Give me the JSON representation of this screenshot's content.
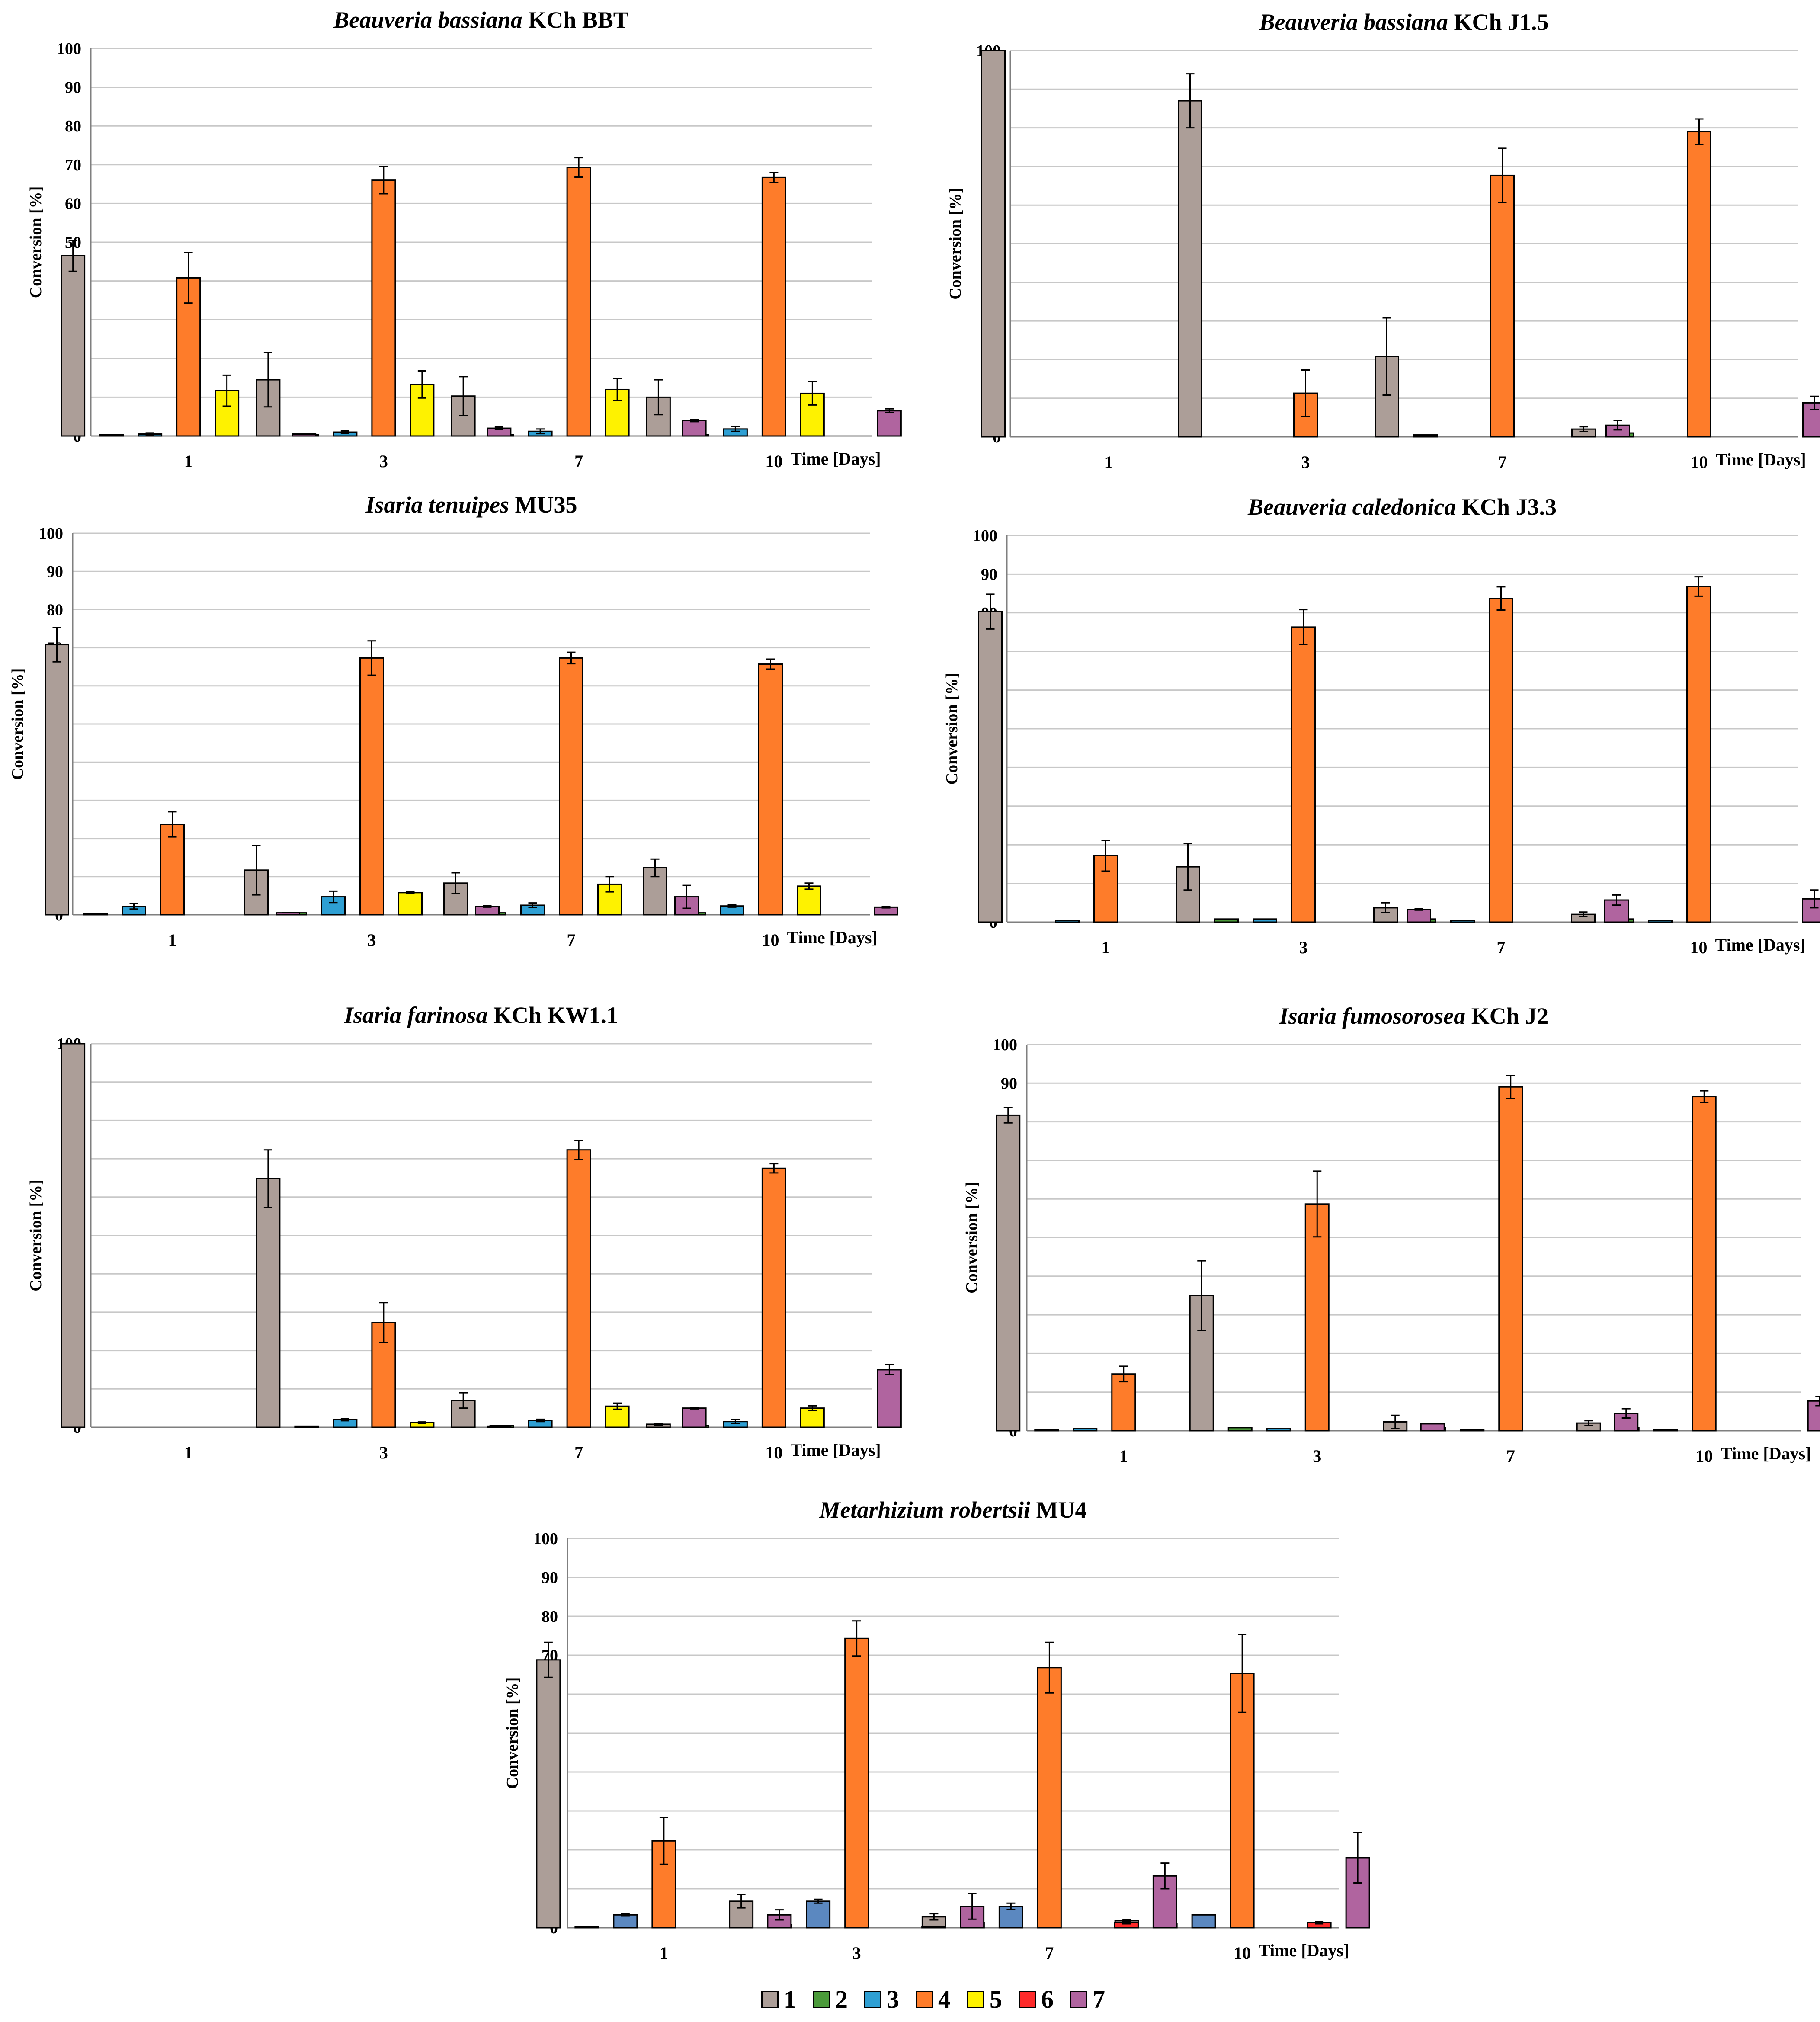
{
  "series_colors": {
    "1": "#ac9e98",
    "2": "#4b9a3a",
    "3": "#2e9fd3",
    "4": "#fe7c2a",
    "5": "#fef200",
    "6": "#fe2a2a",
    "7": "#b0649f"
  },
  "mr_colors": {
    "3": "#5b88c0"
  },
  "legend": [
    "1",
    "2",
    "3",
    "4",
    "5",
    "6",
    "7"
  ],
  "chart_data": [
    {
      "type": "bar",
      "title_italic": "Beauveria bassiana",
      "title_rest": " KCh BBT",
      "ylabel": "Conversion [%]",
      "xlabel": "Time [Days]",
      "categories": [
        "1",
        "3",
        "7",
        "10"
      ],
      "ylim": [
        0,
        100
      ],
      "yticks": [
        0,
        10,
        20,
        30,
        40,
        50,
        60,
        70,
        80,
        90,
        100
      ],
      "grid": true,
      "series": [
        {
          "name": "1",
          "values": [
            46.5,
            14.5,
            10.3,
            10.0
          ],
          "errors": [
            4.0,
            7.0,
            5.0,
            4.5
          ]
        },
        {
          "name": "2",
          "values": [
            0.3,
            0.3,
            0.3,
            0.3
          ],
          "errors": [
            0,
            0,
            0,
            0
          ]
        },
        {
          "name": "3",
          "values": [
            0.5,
            1.0,
            1.2,
            1.8
          ],
          "errors": [
            0.3,
            0.3,
            0.6,
            0.6
          ]
        },
        {
          "name": "4",
          "values": [
            40.8,
            66.0,
            69.3,
            66.7
          ],
          "errors": [
            6.5,
            3.5,
            2.5,
            1.3
          ]
        },
        {
          "name": "5",
          "values": [
            11.7,
            13.3,
            12.0,
            11.0
          ],
          "errors": [
            4.0,
            3.5,
            2.8,
            3.0
          ]
        },
        {
          "name": "6",
          "values": [
            0,
            0,
            0,
            0
          ],
          "errors": [
            0,
            0,
            0,
            0
          ]
        },
        {
          "name": "7",
          "values": [
            0.5,
            2.0,
            4.0,
            6.5
          ],
          "errors": [
            0,
            0.3,
            0.3,
            0.5
          ]
        }
      ]
    },
    {
      "type": "bar",
      "title_italic": "Beauveria bassiana",
      "title_rest": " KCh J1.5",
      "ylabel": "Conversion [%]",
      "xlabel": "Time [Days]",
      "categories": [
        "1",
        "3",
        "7",
        "10"
      ],
      "ylim": [
        0,
        100
      ],
      "yticks": [
        0,
        10,
        20,
        30,
        40,
        50,
        60,
        70,
        80,
        90,
        100
      ],
      "grid": true,
      "series": [
        {
          "name": "1",
          "values": [
            100,
            87.0,
            20.8,
            2.0
          ],
          "errors": [
            0,
            7.0,
            10.0,
            0.6
          ]
        },
        {
          "name": "2",
          "values": [
            0,
            0,
            0.5,
            1.0
          ],
          "errors": [
            0,
            0,
            0,
            0
          ]
        },
        {
          "name": "3",
          "values": [
            0,
            0,
            0,
            0
          ],
          "errors": [
            0,
            0,
            0,
            0
          ]
        },
        {
          "name": "4",
          "values": [
            0,
            11.3,
            67.7,
            79.0
          ],
          "errors": [
            0,
            6.0,
            7.0,
            3.3
          ]
        },
        {
          "name": "5",
          "values": [
            0,
            0,
            0,
            0
          ],
          "errors": [
            0,
            0,
            0,
            0
          ]
        },
        {
          "name": "6",
          "values": [
            0,
            0,
            0,
            0
          ],
          "errors": [
            0,
            0,
            0,
            0
          ]
        },
        {
          "name": "7",
          "values": [
            0,
            0,
            3.0,
            8.8
          ],
          "errors": [
            0,
            0,
            1.2,
            1.7
          ]
        }
      ]
    },
    {
      "type": "bar",
      "title_italic": "Isaria tenuipes",
      "title_rest": " MU35",
      "ylabel": "Conversion [%]",
      "xlabel": "Time [Days]",
      "categories": [
        "1",
        "3",
        "7",
        "10"
      ],
      "ylim": [
        0,
        100
      ],
      "yticks": [
        0,
        10,
        20,
        30,
        40,
        50,
        60,
        70,
        80,
        90,
        100
      ],
      "grid": true,
      "series": [
        {
          "name": "1",
          "values": [
            70.8,
            11.7,
            8.3,
            12.3
          ],
          "errors": [
            4.5,
            6.5,
            2.7,
            2.3
          ]
        },
        {
          "name": "2",
          "values": [
            0.3,
            0.5,
            0.5,
            0.5
          ],
          "errors": [
            0,
            0,
            0,
            0
          ]
        },
        {
          "name": "3",
          "values": [
            2.2,
            4.7,
            2.5,
            2.3
          ],
          "errors": [
            0.7,
            1.5,
            0.6,
            0.3
          ]
        },
        {
          "name": "4",
          "values": [
            23.7,
            67.3,
            67.3,
            65.7
          ],
          "errors": [
            3.3,
            4.5,
            1.5,
            1.3
          ]
        },
        {
          "name": "5",
          "values": [
            0,
            5.8,
            8.0,
            7.5
          ],
          "errors": [
            0,
            0.2,
            2.0,
            0.8
          ]
        },
        {
          "name": "6",
          "values": [
            0,
            0,
            0,
            0
          ],
          "errors": [
            0,
            0,
            0,
            0
          ]
        },
        {
          "name": "7",
          "values": [
            0.5,
            2.2,
            4.7,
            2.0
          ],
          "errors": [
            0,
            0.2,
            3.0,
            0.2
          ]
        }
      ]
    },
    {
      "type": "bar",
      "title_italic": "Beauveria caledonica",
      "title_rest": " KCh J3.3",
      "ylabel": "Conversion [%]",
      "xlabel": "Time [Days]",
      "categories": [
        "1",
        "3",
        "7",
        "10"
      ],
      "ylim": [
        0,
        100
      ],
      "yticks": [
        0,
        10,
        20,
        30,
        40,
        50,
        60,
        70,
        80,
        90,
        100
      ],
      "grid": true,
      "series": [
        {
          "name": "1",
          "values": [
            80.3,
            14.3,
            3.7,
            2.0
          ],
          "errors": [
            4.5,
            6.0,
            1.3,
            0.6
          ]
        },
        {
          "name": "2",
          "values": [
            0,
            0.8,
            0.8,
            0.8
          ],
          "errors": [
            0,
            0,
            0,
            0
          ]
        },
        {
          "name": "3",
          "values": [
            0.5,
            0.8,
            0.5,
            0.5
          ],
          "errors": [
            0,
            0,
            0,
            0
          ]
        },
        {
          "name": "4",
          "values": [
            17.2,
            76.3,
            83.7,
            86.8
          ],
          "errors": [
            4.0,
            4.5,
            3.0,
            2.5
          ]
        },
        {
          "name": "5",
          "values": [
            0,
            0,
            0,
            0
          ],
          "errors": [
            0,
            0,
            0,
            0
          ]
        },
        {
          "name": "6",
          "values": [
            0,
            0,
            0,
            0
          ],
          "errors": [
            0,
            0,
            0,
            0
          ]
        },
        {
          "name": "7",
          "values": [
            0,
            3.3,
            5.7,
            6.0
          ],
          "errors": [
            0,
            0.2,
            1.3,
            2.3
          ]
        }
      ]
    },
    {
      "type": "bar",
      "title_italic": "Isaria farinosa",
      "title_rest": " KCh KW1.1",
      "ylabel": "Conversion [%]",
      "xlabel": "Time [Days]",
      "categories": [
        "1",
        "3",
        "7",
        "10"
      ],
      "ylim": [
        0,
        100
      ],
      "yticks": [
        0,
        10,
        20,
        30,
        40,
        50,
        60,
        70,
        80,
        90,
        100
      ],
      "grid": true,
      "series": [
        {
          "name": "1",
          "values": [
            100,
            64.8,
            7.0,
            0.8
          ],
          "errors": [
            0,
            7.5,
            2.0,
            0.2
          ]
        },
        {
          "name": "2",
          "values": [
            0,
            0.3,
            0.5,
            0.5
          ],
          "errors": [
            0,
            0,
            0,
            0
          ]
        },
        {
          "name": "3",
          "values": [
            0,
            2.0,
            1.8,
            1.5
          ],
          "errors": [
            0,
            0.3,
            0.3,
            0.5
          ]
        },
        {
          "name": "4",
          "values": [
            0,
            27.3,
            72.3,
            67.5
          ],
          "errors": [
            0,
            5.2,
            2.5,
            1.2
          ]
        },
        {
          "name": "5",
          "values": [
            0,
            1.2,
            5.5,
            5.0
          ],
          "errors": [
            0,
            0.2,
            0.8,
            0.6
          ]
        },
        {
          "name": "6",
          "values": [
            0,
            0,
            0,
            0
          ],
          "errors": [
            0,
            0,
            0,
            0
          ]
        },
        {
          "name": "7",
          "values": [
            0,
            0.3,
            5.0,
            15.0
          ],
          "errors": [
            0,
            0,
            0.2,
            1.3
          ]
        }
      ]
    },
    {
      "type": "bar",
      "title_italic": "Isaria fumosorosea",
      "title_rest": " KCh J2",
      "ylabel": "Conversion [%]",
      "xlabel": "Time [Days]",
      "categories": [
        "1",
        "3",
        "7",
        "10"
      ],
      "ylim": [
        0,
        100
      ],
      "yticks": [
        0,
        10,
        20,
        30,
        40,
        50,
        60,
        70,
        80,
        90,
        100
      ],
      "grid": true,
      "series": [
        {
          "name": "1",
          "values": [
            81.7,
            35.0,
            2.3,
            2.0
          ],
          "errors": [
            2.0,
            9.0,
            1.7,
            0.6
          ]
        },
        {
          "name": "2",
          "values": [
            0.3,
            0.8,
            0.8,
            0.8
          ],
          "errors": [
            0,
            0,
            0,
            0
          ]
        },
        {
          "name": "3",
          "values": [
            0.5,
            0.5,
            0.3,
            0.3
          ],
          "errors": [
            0,
            0,
            0,
            0
          ]
        },
        {
          "name": "4",
          "values": [
            14.7,
            58.7,
            89.0,
            86.5
          ],
          "errors": [
            2.0,
            8.5,
            3.0,
            1.5
          ]
        },
        {
          "name": "5",
          "values": [
            0,
            0,
            0,
            0
          ],
          "errors": [
            0,
            0,
            0,
            0
          ]
        },
        {
          "name": "6",
          "values": [
            0,
            0,
            0,
            0
          ],
          "errors": [
            0,
            0,
            0,
            0
          ]
        },
        {
          "name": "7",
          "values": [
            0,
            1.8,
            4.5,
            7.7
          ],
          "errors": [
            0,
            0,
            1.2,
            1.2
          ]
        }
      ]
    },
    {
      "type": "bar",
      "title_italic": "Metarhizium robertsii",
      "title_rest": " MU4",
      "ylabel": "Conversion [%]",
      "xlabel": "Time [Days]",
      "categories": [
        "1",
        "3",
        "7",
        "10"
      ],
      "ylim": [
        0,
        100
      ],
      "yticks": [
        0,
        10,
        20,
        30,
        40,
        50,
        60,
        70,
        80,
        90,
        100
      ],
      "grid": true,
      "series": [
        {
          "name": "1",
          "values": [
            68.8,
            6.8,
            2.8,
            1.8
          ],
          "errors": [
            4.5,
            1.7,
            0.8,
            0.3
          ]
        },
        {
          "name": "2",
          "values": [
            0.3,
            0.8,
            1.3,
            1.0
          ],
          "errors": [
            0,
            0,
            0.3,
            0.3
          ]
        },
        {
          "name": "3",
          "values": [
            3.3,
            6.8,
            5.5,
            3.3
          ],
          "errors": [
            0.3,
            0.5,
            0.8,
            0
          ]
        },
        {
          "name": "4",
          "values": [
            22.3,
            74.3,
            66.8,
            65.3
          ],
          "errors": [
            6.0,
            4.5,
            6.5,
            10.0
          ]
        },
        {
          "name": "5",
          "values": [
            0,
            0,
            0,
            0
          ],
          "errors": [
            0,
            0,
            0,
            0
          ]
        },
        {
          "name": "6",
          "values": [
            0,
            0.3,
            1.3,
            1.3
          ],
          "errors": [
            0,
            0,
            0.3,
            0.3
          ]
        },
        {
          "name": "7",
          "values": [
            3.3,
            5.5,
            13.3,
            18.0
          ],
          "errors": [
            1.3,
            3.3,
            3.3,
            6.5
          ]
        }
      ]
    }
  ]
}
